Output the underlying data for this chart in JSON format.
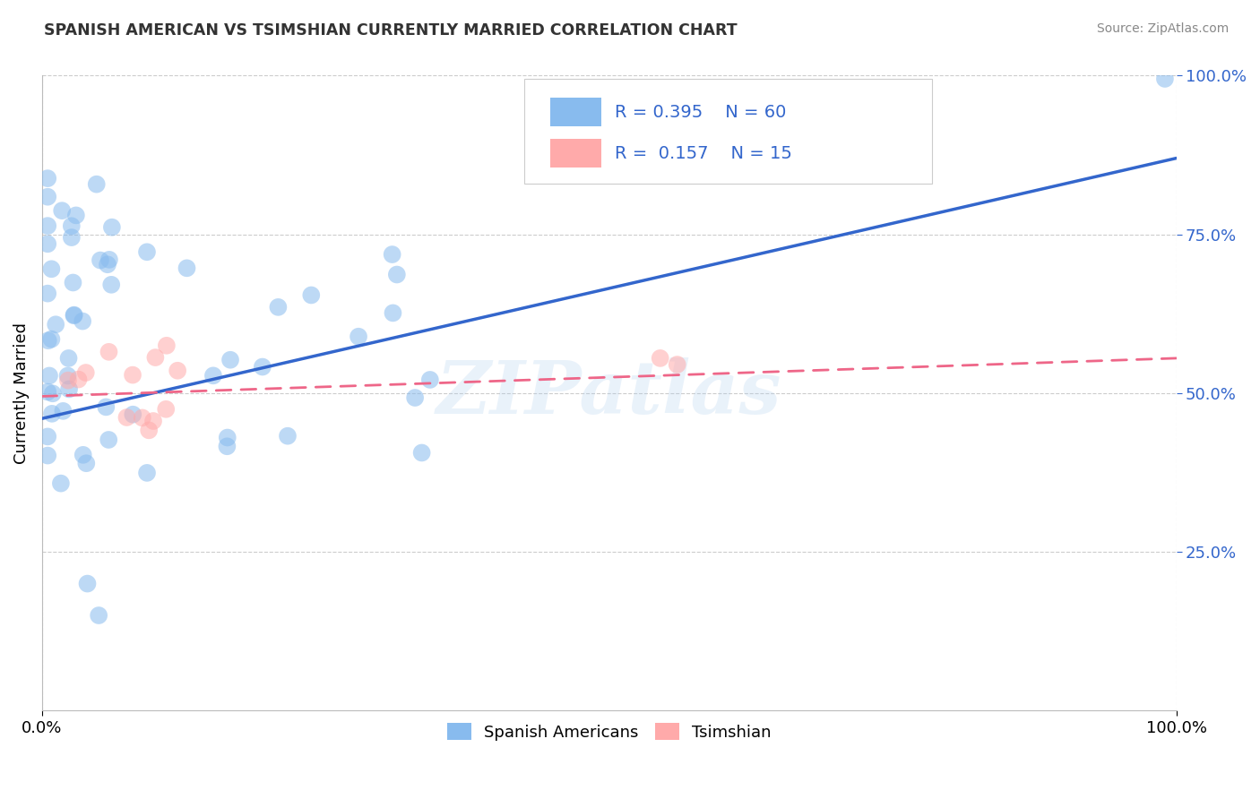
{
  "title": "SPANISH AMERICAN VS TSIMSHIAN CURRENTLY MARRIED CORRELATION CHART",
  "source": "Source: ZipAtlas.com",
  "ylabel": "Currently Married",
  "xlim": [
    0,
    1.0
  ],
  "ylim": [
    0,
    1.0
  ],
  "ytick_positions": [
    0.25,
    0.5,
    0.75,
    1.0
  ],
  "ytick_labels": [
    "25.0%",
    "50.0%",
    "75.0%",
    "100.0%"
  ],
  "blue_color": "#88BBEE",
  "pink_color": "#FFAAAA",
  "blue_line_color": "#3366CC",
  "pink_line_color": "#EE6688",
  "watermark": "ZIPatlas",
  "legend_R_blue": "0.395",
  "legend_N_blue": "60",
  "legend_R_pink": "0.157",
  "legend_N_pink": "15",
  "blue_line_x0": 0.0,
  "blue_line_y0": 0.46,
  "blue_line_x1": 1.0,
  "blue_line_y1": 0.87,
  "pink_line_x0": 0.0,
  "pink_line_y0": 0.495,
  "pink_line_x1": 1.0,
  "pink_line_y1": 0.555
}
